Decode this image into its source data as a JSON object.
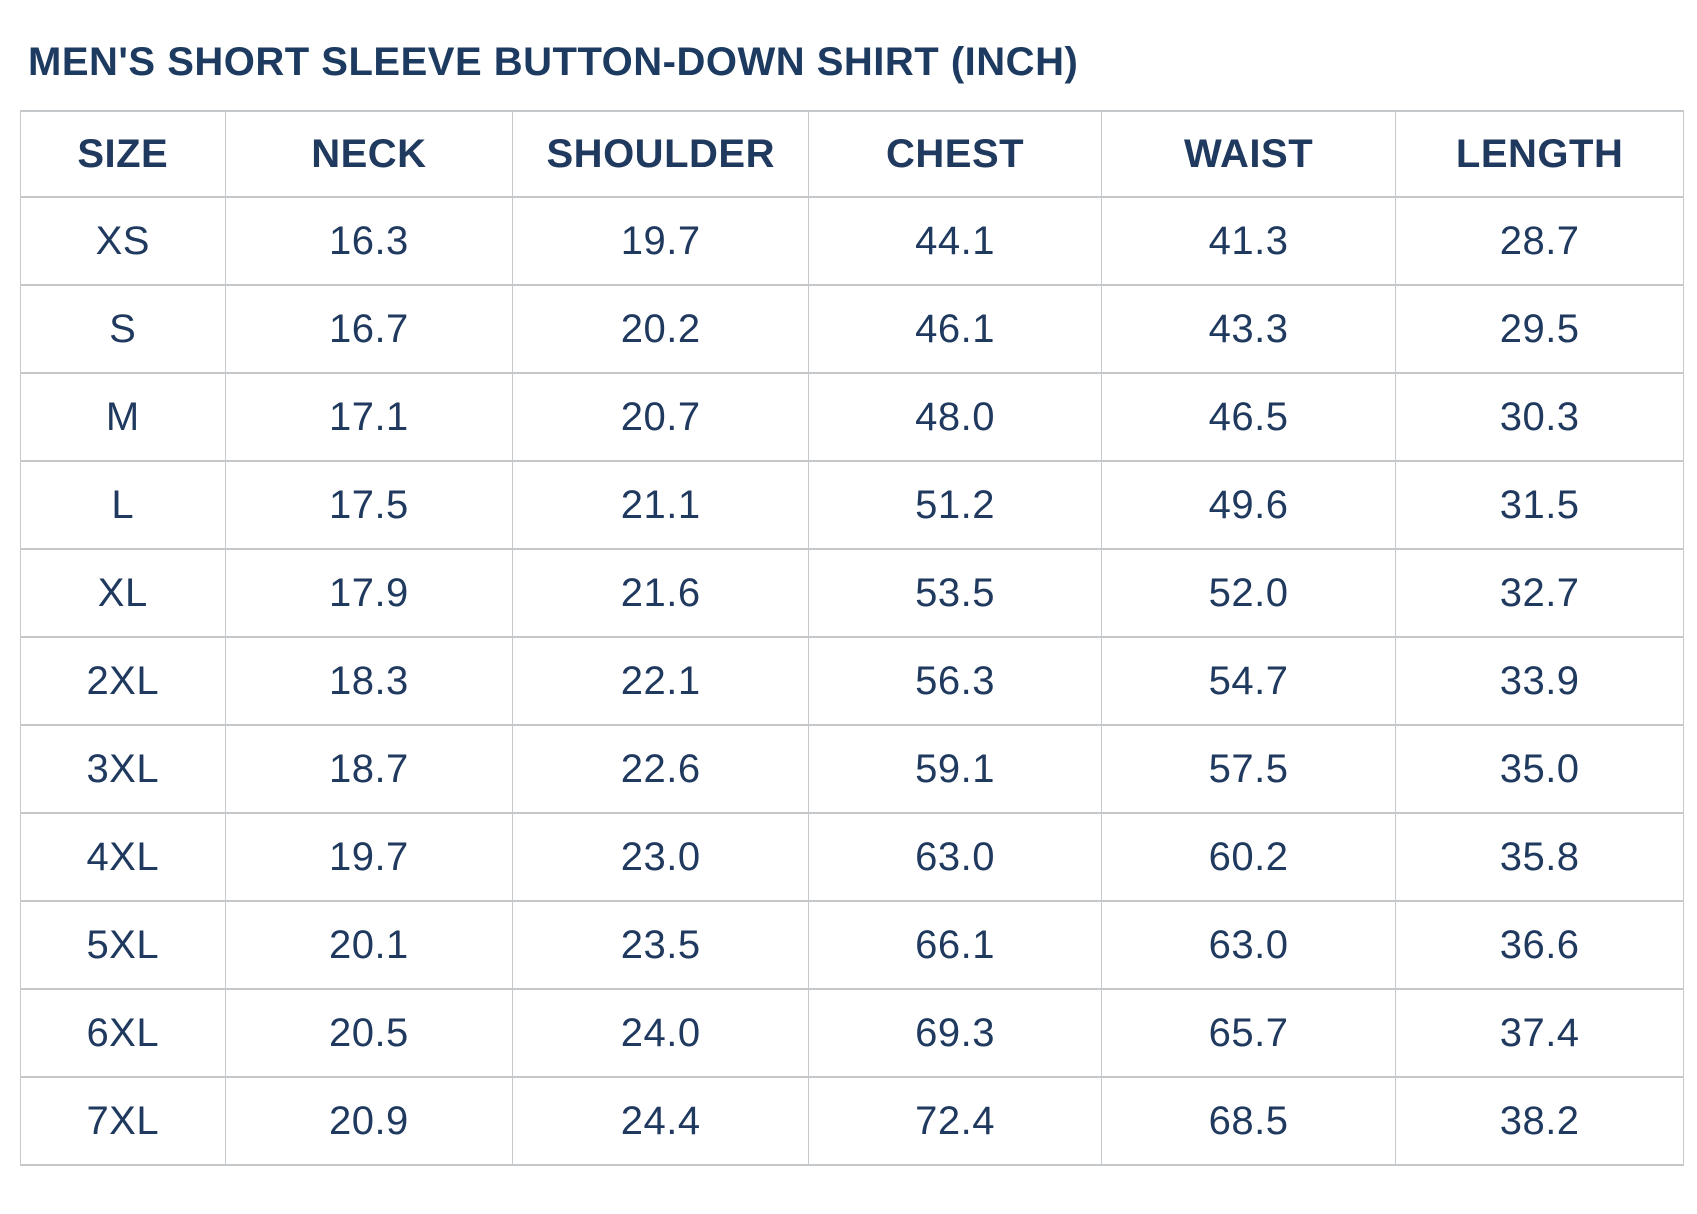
{
  "title": "MEN'S SHORT SLEEVE BUTTON-DOWN SHIRT (INCH)",
  "chart_data": {
    "type": "table",
    "title": "MEN'S SHORT SLEEVE BUTTON-DOWN SHIRT (INCH)",
    "unit_note": "(INCH)",
    "columns": [
      "SIZE",
      "NECK",
      "SHOULDER",
      "CHEST",
      "WAIST",
      "LENGTH"
    ],
    "rows": [
      [
        "XS",
        "16.3",
        "19.7",
        "44.1",
        "41.3",
        "28.7"
      ],
      [
        "S",
        "16.7",
        "20.2",
        "46.1",
        "43.3",
        "29.5"
      ],
      [
        "M",
        "17.1",
        "20.7",
        "48.0",
        "46.5",
        "30.3"
      ],
      [
        "L",
        "17.5",
        "21.1",
        "51.2",
        "49.6",
        "31.5"
      ],
      [
        "XL",
        "17.9",
        "21.6",
        "53.5",
        "52.0",
        "32.7"
      ],
      [
        "2XL",
        "18.3",
        "22.1",
        "56.3",
        "54.7",
        "33.9"
      ],
      [
        "3XL",
        "18.7",
        "22.6",
        "59.1",
        "57.5",
        "35.0"
      ],
      [
        "4XL",
        "19.7",
        "23.0",
        "63.0",
        "60.2",
        "35.8"
      ],
      [
        "5XL",
        "20.1",
        "23.5",
        "66.1",
        "63.0",
        "36.6"
      ],
      [
        "6XL",
        "20.5",
        "24.0",
        "69.3",
        "65.7",
        "37.4"
      ],
      [
        "7XL",
        "20.9",
        "24.4",
        "72.4",
        "68.5",
        "38.2"
      ]
    ]
  },
  "colors": {
    "text_navy": "#20395e",
    "title_navy": "#1d3a60",
    "border_light": "#c6c9cb",
    "border_outer": "#b9bcbf",
    "background": "#ffffff"
  }
}
